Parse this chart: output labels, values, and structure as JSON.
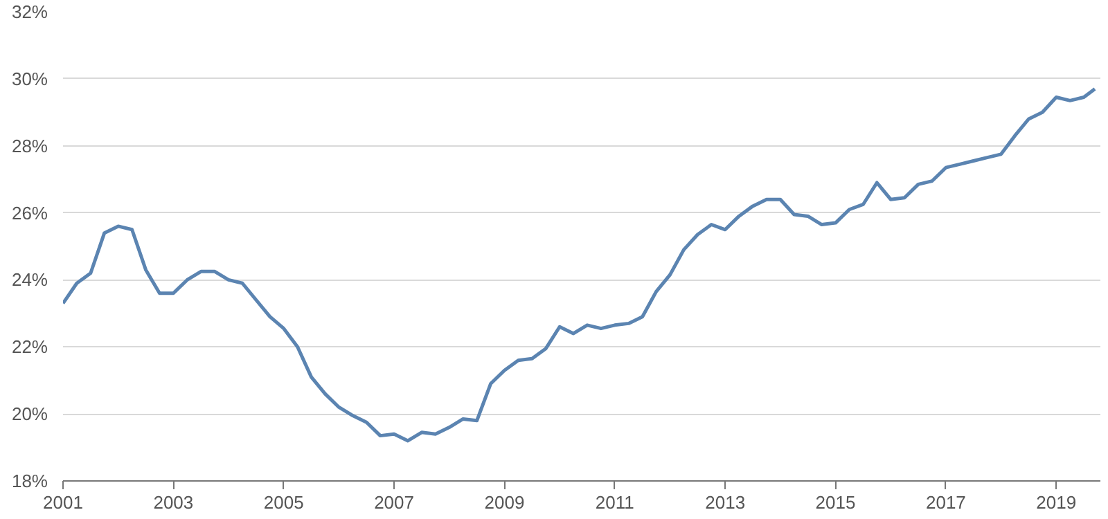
{
  "chart_data": {
    "type": "line",
    "color": "#5b84b1",
    "grid": "y",
    "marker": "none",
    "line_style": "solid",
    "x": [
      2001.0,
      2001.25,
      2001.5,
      2001.75,
      2002.0,
      2002.25,
      2002.5,
      2002.75,
      2003.0,
      2003.25,
      2003.5,
      2003.75,
      2004.0,
      2004.25,
      2004.5,
      2004.75,
      2005.0,
      2005.25,
      2005.5,
      2005.75,
      2006.0,
      2006.25,
      2006.5,
      2006.75,
      2007.0,
      2007.25,
      2007.5,
      2007.75,
      2008.0,
      2008.25,
      2008.5,
      2008.75,
      2009.0,
      2009.25,
      2009.5,
      2009.75,
      2010.0,
      2010.25,
      2010.5,
      2010.75,
      2011.0,
      2011.25,
      2011.5,
      2011.75,
      2012.0,
      2012.25,
      2012.5,
      2012.75,
      2013.0,
      2013.25,
      2013.5,
      2013.75,
      2014.0,
      2014.25,
      2014.5,
      2014.75,
      2015.0,
      2015.25,
      2015.5,
      2015.75,
      2016.0,
      2016.25,
      2016.5,
      2016.75,
      2017.0,
      2017.25,
      2017.5,
      2017.75,
      2018.0,
      2018.25,
      2018.5,
      2018.75,
      2019.0,
      2019.25,
      2019.5,
      2019.7
    ],
    "values": [
      23.3,
      23.9,
      24.2,
      25.4,
      25.6,
      25.5,
      24.3,
      23.6,
      23.6,
      24.0,
      24.25,
      24.25,
      24.0,
      23.9,
      23.4,
      22.9,
      22.55,
      22.0,
      21.1,
      20.6,
      20.2,
      19.95,
      19.75,
      19.35,
      19.4,
      19.2,
      19.45,
      19.4,
      19.6,
      19.85,
      19.8,
      20.9,
      21.3,
      21.6,
      21.65,
      21.95,
      22.6,
      22.4,
      22.65,
      22.55,
      22.65,
      22.7,
      22.9,
      23.65,
      24.15,
      24.9,
      25.35,
      25.65,
      25.5,
      25.9,
      26.2,
      26.4,
      26.4,
      25.95,
      25.9,
      25.65,
      25.7,
      26.1,
      26.25,
      26.9,
      26.4,
      26.45,
      26.85,
      26.95,
      27.35,
      27.45,
      27.55,
      27.65,
      27.75,
      28.3,
      28.8,
      29.0,
      29.45,
      29.35,
      29.45,
      29.7
    ],
    "xlim": [
      2001,
      2019.8
    ],
    "xticks": [
      2001,
      2003,
      2005,
      2007,
      2009,
      2011,
      2013,
      2015,
      2017,
      2019
    ],
    "ylim": [
      18,
      32
    ],
    "yticks": [
      {
        "value": 18,
        "label": "18%"
      },
      {
        "value": 20,
        "label": "20%"
      },
      {
        "value": 22,
        "label": "22%"
      },
      {
        "value": 24,
        "label": "24%"
      },
      {
        "value": 26,
        "label": "26%"
      },
      {
        "value": 28,
        "label": "28%"
      },
      {
        "value": 30,
        "label": "30%"
      },
      {
        "value": 32,
        "label": "32%"
      }
    ]
  }
}
